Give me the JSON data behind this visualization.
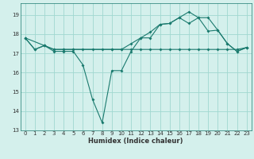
{
  "xlabel": "Humidex (Indice chaleur)",
  "bg_color": "#d4f0ec",
  "grid_color": "#a0d8d0",
  "line_color": "#1a7a6e",
  "spine_color": "#1a7a6e",
  "xlim": [
    -0.5,
    23.5
  ],
  "ylim": [
    13,
    19.6
  ],
  "yticks": [
    13,
    14,
    15,
    16,
    17,
    18,
    19
  ],
  "xticks": [
    0,
    1,
    2,
    3,
    4,
    5,
    6,
    7,
    8,
    9,
    10,
    11,
    12,
    13,
    14,
    15,
    16,
    17,
    18,
    19,
    20,
    21,
    22,
    23
  ],
  "line1_x": [
    0,
    1,
    2,
    3,
    4,
    5,
    6,
    7,
    8,
    9,
    10,
    11,
    12,
    13,
    14,
    15,
    16,
    17,
    18,
    19,
    20,
    21,
    22,
    23
  ],
  "line1_y": [
    17.8,
    17.2,
    17.4,
    17.2,
    17.2,
    17.2,
    17.2,
    17.2,
    17.2,
    17.2,
    17.2,
    17.2,
    17.2,
    17.2,
    17.2,
    17.2,
    17.2,
    17.2,
    17.2,
    17.2,
    17.2,
    17.2,
    17.2,
    17.3
  ],
  "line2_x": [
    0,
    1,
    2,
    3,
    4,
    5,
    6,
    7,
    8,
    9,
    10,
    11,
    12,
    13,
    14,
    15,
    16,
    17,
    18,
    19,
    20,
    21,
    22,
    23
  ],
  "line2_y": [
    17.8,
    17.2,
    17.4,
    17.1,
    17.1,
    17.1,
    16.4,
    14.6,
    13.4,
    16.1,
    16.1,
    17.1,
    17.8,
    17.8,
    18.5,
    18.55,
    18.85,
    18.55,
    18.85,
    18.85,
    18.2,
    17.5,
    17.1,
    17.3
  ],
  "line3_x": [
    0,
    2,
    3,
    4,
    5,
    9,
    10,
    11,
    12,
    13,
    14,
    15,
    16,
    17,
    18,
    19,
    20,
    21,
    22,
    23
  ],
  "line3_y": [
    17.8,
    17.4,
    17.2,
    17.2,
    17.2,
    17.2,
    17.2,
    17.5,
    17.8,
    18.1,
    18.5,
    18.55,
    18.85,
    19.15,
    18.85,
    18.15,
    18.2,
    17.5,
    17.1,
    17.3
  ]
}
